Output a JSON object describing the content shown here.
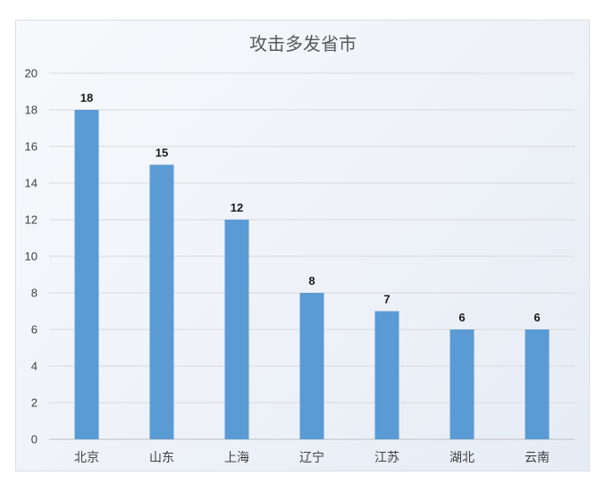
{
  "chart_data": {
    "type": "bar",
    "title": "攻击多发省市",
    "categories": [
      "北京",
      "山东",
      "上海",
      "辽宁",
      "江苏",
      "湖北",
      "云南"
    ],
    "values": [
      18,
      15,
      12,
      8,
      7,
      6,
      6
    ],
    "ylim": [
      0,
      20
    ],
    "yticks": [
      0,
      2,
      4,
      6,
      8,
      10,
      12,
      14,
      16,
      18,
      20
    ],
    "xlabel": "",
    "ylabel": "",
    "grid": true,
    "legend": "none",
    "data_labels": true,
    "bar_color": "#5b9bd5",
    "grid_color": "#d9d9d9"
  }
}
